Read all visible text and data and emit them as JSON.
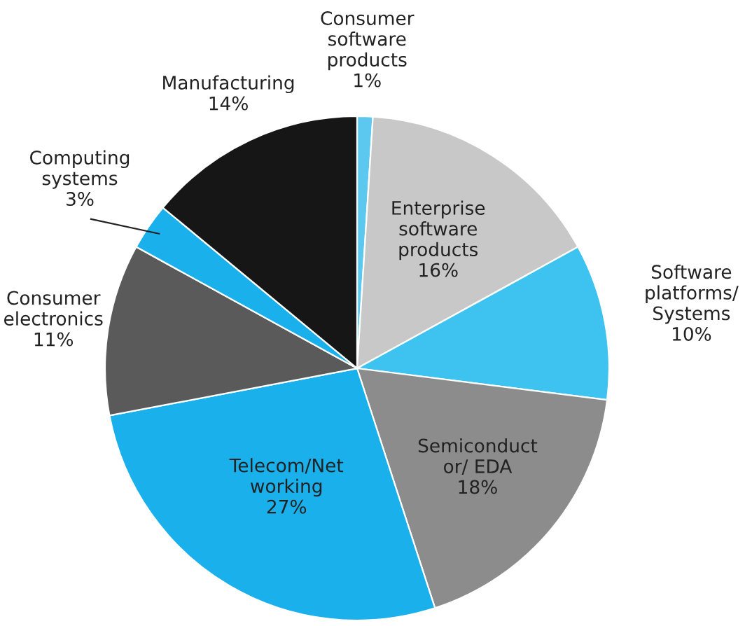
{
  "chart_data": {
    "type": "pie",
    "categories": [
      "Consumer\nsoftware\nproducts",
      "Enterprise\nsoftware\nproducts",
      "Software\nplatforms/\nSystems",
      "Semiconduct\nor/ EDA",
      "Telecom/Net\nworking",
      "Consumer\nelectronics",
      "Computing\nsystems",
      "Manufacturing"
    ],
    "values": [
      1,
      16,
      10,
      18,
      27,
      11,
      3,
      14
    ],
    "value_labels": [
      "1%",
      "16%",
      "10%",
      "18%",
      "27%",
      "11%",
      "3%",
      "14%"
    ],
    "colors": [
      "#5cc8f0",
      "#c8c8c8",
      "#3ec3f0",
      "#8c8c8c",
      "#1ab0ec",
      "#5a5a5a",
      "#1ab0ec",
      "#161616"
    ]
  }
}
